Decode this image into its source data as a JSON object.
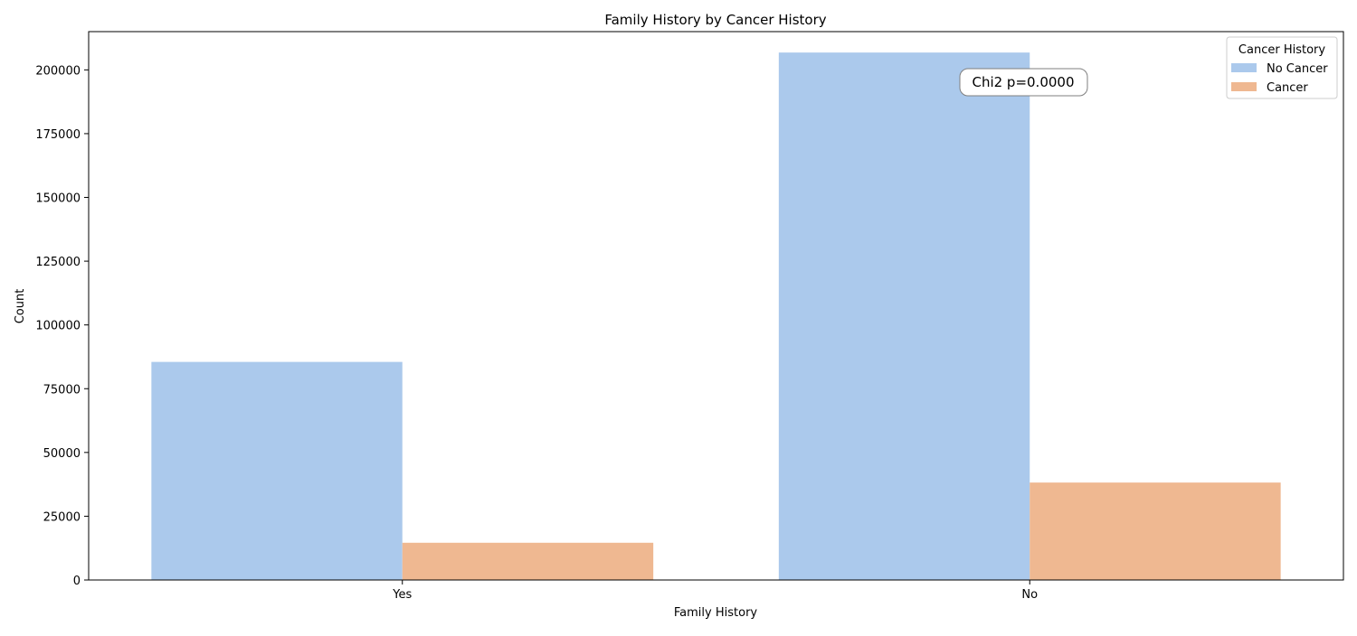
{
  "chart_data": {
    "type": "bar",
    "title": "Family History by Cancer History",
    "xlabel": "Family History",
    "ylabel": "Count",
    "categories": [
      "Yes",
      "No"
    ],
    "series": [
      {
        "name": "No Cancer",
        "color": "#abc9ec",
        "values": [
          85500,
          206800
        ]
      },
      {
        "name": "Cancer",
        "color": "#efb891",
        "values": [
          14600,
          38200
        ]
      }
    ],
    "yticks": [
      0,
      25000,
      50000,
      75000,
      100000,
      125000,
      150000,
      175000,
      200000
    ],
    "ylim": [
      0,
      215000
    ],
    "legend": {
      "title": "Cancer History",
      "placement": "top-right"
    },
    "annotation": "Chi2 p=0.0000",
    "grid": false
  }
}
